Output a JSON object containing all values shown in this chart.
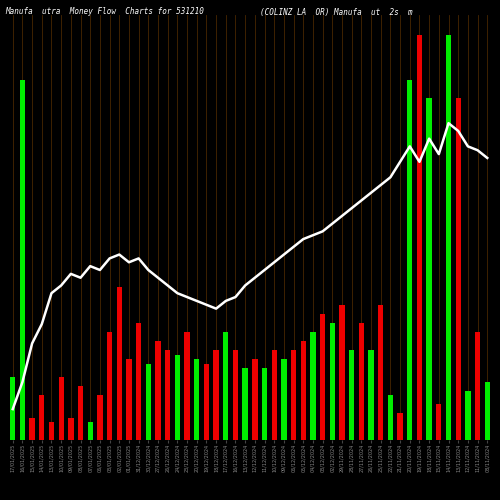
{
  "title_left": "Manufa  utra  Money Flow  Charts for 531210",
  "title_right": "(COLINZ LA  OR) Manufa  ut  2s  m",
  "background_color": "#000000",
  "bar_color_green": "#00ee00",
  "bar_color_red": "#ee0000",
  "separator_color": "#5a3000",
  "line_color": "#ffffff",
  "categories": [
    "17/01/2025",
    "16/01/2025",
    "15/01/2025",
    "14/01/2025",
    "13/01/2025",
    "10/01/2025",
    "09/01/2025",
    "08/01/2025",
    "07/01/2025",
    "06/01/2025",
    "03/01/2025",
    "02/01/2025",
    "01/01/2025",
    "31/12/2024",
    "30/12/2024",
    "27/12/2024",
    "26/12/2024",
    "24/12/2024",
    "23/12/2024",
    "20/12/2024",
    "19/12/2024",
    "18/12/2024",
    "17/12/2024",
    "16/12/2024",
    "13/12/2024",
    "12/12/2024",
    "11/12/2024",
    "10/12/2024",
    "09/12/2024",
    "06/12/2024",
    "05/12/2024",
    "04/12/2024",
    "03/12/2024",
    "02/12/2024",
    "29/11/2024",
    "28/11/2024",
    "27/11/2024",
    "26/11/2024",
    "25/11/2024",
    "22/11/2024",
    "21/11/2024",
    "20/11/2024",
    "19/11/2024",
    "18/11/2024",
    "15/11/2024",
    "14/11/2024",
    "13/11/2024",
    "12/11/2024",
    "11/11/2024",
    "08/11/2024"
  ],
  "bar_heights": [
    70,
    400,
    25,
    50,
    20,
    70,
    25,
    60,
    20,
    50,
    120,
    170,
    90,
    130,
    85,
    110,
    100,
    95,
    120,
    90,
    85,
    100,
    120,
    100,
    80,
    90,
    80,
    100,
    90,
    100,
    110,
    120,
    140,
    130,
    150,
    100,
    130,
    100,
    150,
    50,
    30,
    400,
    450,
    380,
    40,
    450,
    380,
    55,
    120,
    65
  ],
  "bar_is_green": [
    true,
    true,
    false,
    false,
    false,
    false,
    false,
    false,
    true,
    false,
    false,
    false,
    false,
    false,
    true,
    false,
    false,
    true,
    false,
    true,
    false,
    false,
    true,
    false,
    true,
    false,
    true,
    false,
    true,
    false,
    false,
    true,
    false,
    true,
    false,
    true,
    false,
    true,
    false,
    true,
    false,
    true,
    false,
    true,
    false,
    true,
    false,
    true,
    false,
    true
  ],
  "line_values": [
    0.08,
    0.15,
    0.25,
    0.3,
    0.38,
    0.4,
    0.43,
    0.42,
    0.45,
    0.44,
    0.47,
    0.48,
    0.46,
    0.47,
    0.44,
    0.42,
    0.4,
    0.38,
    0.37,
    0.36,
    0.35,
    0.34,
    0.36,
    0.37,
    0.4,
    0.42,
    0.44,
    0.46,
    0.48,
    0.5,
    0.52,
    0.53,
    0.54,
    0.56,
    0.58,
    0.6,
    0.62,
    0.64,
    0.66,
    0.68,
    0.72,
    0.76,
    0.72,
    0.78,
    0.74,
    0.82,
    0.8,
    0.76,
    0.75,
    0.73
  ]
}
